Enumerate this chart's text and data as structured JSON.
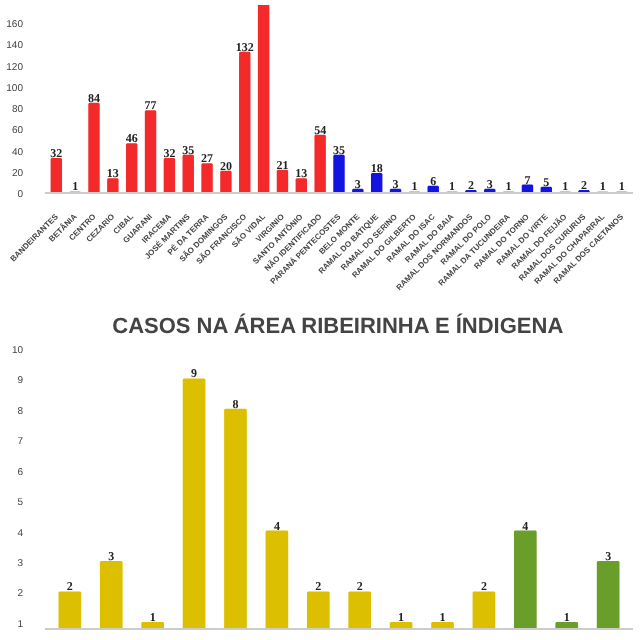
{
  "chart_data": [
    {
      "type": "bar",
      "categories": [
        "BANDEIRANTES",
        "BETÂNIA",
        "CENTRO",
        "CEZARIO",
        "CIBAL",
        "GUARANI",
        "IRACEMA",
        "JOSÉ MARTINS",
        "PÉ DA TERRA",
        "SÃO DOMINGOS",
        "SÃO FRANCISCO",
        "SÃO VIDAL",
        "VIRGINIO",
        "SANTO ANTÔNIO",
        "NÃO IDENTIFICADO",
        "PARANÁ PENTECOSTES",
        "BELO MONTE",
        "RAMAL DO BATIQUE",
        "RAMAL DO SERINO",
        "RAMAL DO GILBERTO",
        "RAMAL DO ISAC",
        "RAMAL DO BAIA",
        "RAMAL DOS NORMANDOS",
        "RAMAL DO POLO",
        "RAMAL DA TUCUNDEIRA",
        "RAMAL DO TORNO",
        "RAMAL DO VIRTE",
        "RAMAL DO FEIJÃO",
        "RAMAL DOS CURURUS",
        "RAMAL DO CHAPARRAL",
        "RAMAL DOS CAETANOS"
      ],
      "values": [
        32,
        1,
        84,
        13,
        46,
        77,
        32,
        35,
        27,
        20,
        132,
        177,
        21,
        13,
        54,
        35,
        3,
        18,
        3,
        1,
        6,
        1,
        2,
        3,
        1,
        7,
        5,
        1,
        2,
        1,
        1
      ],
      "value_labels": [
        "32",
        "1",
        "84",
        "13",
        "46",
        "77",
        "32",
        "35",
        "27",
        "20",
        "132",
        null,
        "21",
        "13",
        "54",
        "35",
        "3",
        "18",
        "3",
        "1",
        "6",
        "1",
        "2",
        "3",
        "1",
        "7",
        "5",
        "1",
        "2",
        "1",
        "1"
      ],
      "colors": [
        "#f42a2a",
        "#f4b4b4",
        "#f42a2a",
        "#f42a2a",
        "#f42a2a",
        "#f42a2a",
        "#f42a2a",
        "#f42a2a",
        "#f42a2a",
        "#f42a2a",
        "#f42a2a",
        "#f42a2a",
        "#f42a2a",
        "#f42a2a",
        "#f42a2a",
        "#1414e0",
        "#1414e0",
        "#1414e0",
        "#1414e0",
        "#c0c0f0",
        "#1414e0",
        "#c0c0f0",
        "#1414e0",
        "#1414e0",
        "#c0c0f0",
        "#1414e0",
        "#1414e0",
        "#c0c0f0",
        "#1414e0",
        "#f0c0c0",
        "#c0c0f0"
      ],
      "ylim": [
        0,
        177
      ],
      "yticks": [
        0,
        20,
        40,
        60,
        80,
        100,
        120,
        140,
        160
      ],
      "grid": false
    },
    {
      "type": "bar",
      "title": "CASOS NA ÁREA RIBEIRINHA E ÍNDIGENA",
      "categories": [
        null,
        null,
        null,
        null,
        null,
        null,
        null,
        null,
        null,
        null,
        null,
        null,
        null,
        null
      ],
      "values": [
        2,
        3,
        1,
        9,
        8,
        4,
        2,
        2,
        1,
        1,
        2,
        4,
        1,
        3
      ],
      "colors": [
        "#dcc000",
        "#dcc000",
        "#dcc000",
        "#dcc000",
        "#dcc000",
        "#dcc000",
        "#dcc000",
        "#dcc000",
        "#dcc000",
        "#dcc000",
        "#dcc000",
        "#6a9e2a",
        "#6a9e2a",
        "#6a9e2a"
      ],
      "ylim": [
        0.8,
        10
      ],
      "yticks": [
        1,
        2,
        3,
        4,
        5,
        6,
        7,
        8,
        9,
        10
      ],
      "data_labels": true,
      "grid": false
    }
  ]
}
